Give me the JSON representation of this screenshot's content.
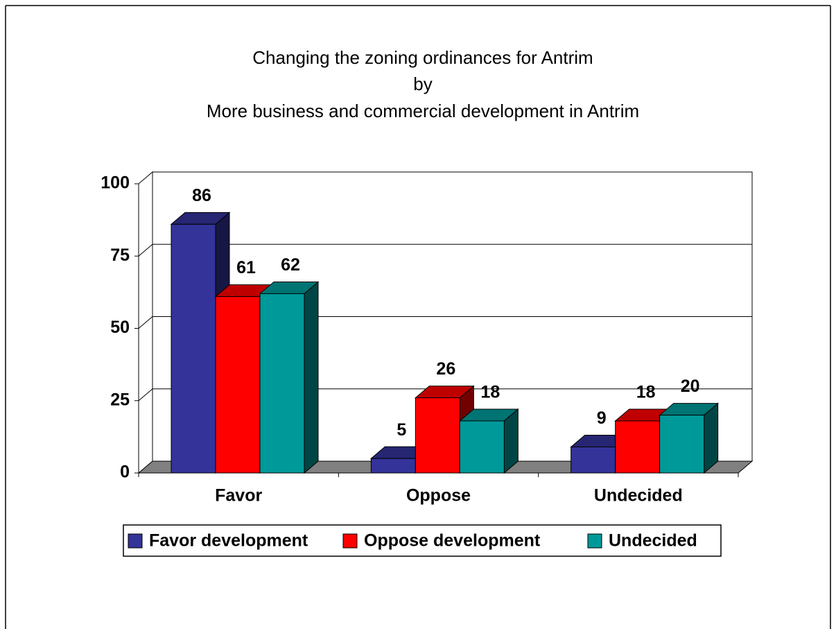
{
  "chart_data": {
    "type": "bar",
    "title": [
      "Changing the zoning ordinances for Antrim",
      "by",
      "More business and commercial development in Antrim"
    ],
    "categories": [
      "Favor",
      "Oppose",
      "Undecided"
    ],
    "series": [
      {
        "name": "Favor development",
        "color": "#333399",
        "values": [
          86,
          5,
          9
        ]
      },
      {
        "name": "Oppose development",
        "color": "#ff0000",
        "values": [
          61,
          26,
          18
        ]
      },
      {
        "name": "Undecided",
        "color": "#009999",
        "values": [
          62,
          18,
          20
        ]
      }
    ],
    "ylim": [
      0,
      100
    ],
    "yticks": [
      0,
      25,
      50,
      75,
      100
    ],
    "grid": true,
    "legend": "bottom"
  }
}
